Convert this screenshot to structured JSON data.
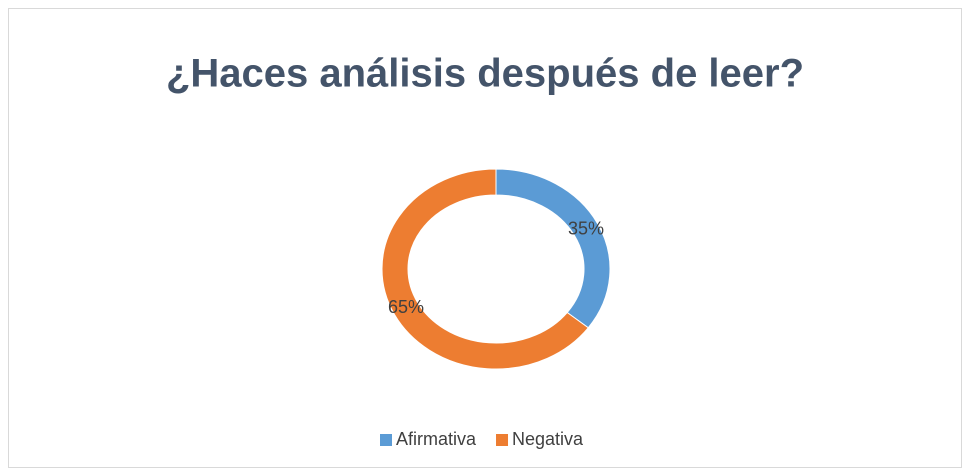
{
  "chart_data": {
    "type": "donut",
    "title": "¿Haces análisis después de leer?",
    "categories": [
      "Afirmativa",
      "Negativa"
    ],
    "values": [
      35,
      65
    ],
    "value_labels": [
      "35%",
      "65%"
    ],
    "colors": [
      "#5b9bd5",
      "#ed7d31"
    ],
    "legend": "bottom"
  }
}
